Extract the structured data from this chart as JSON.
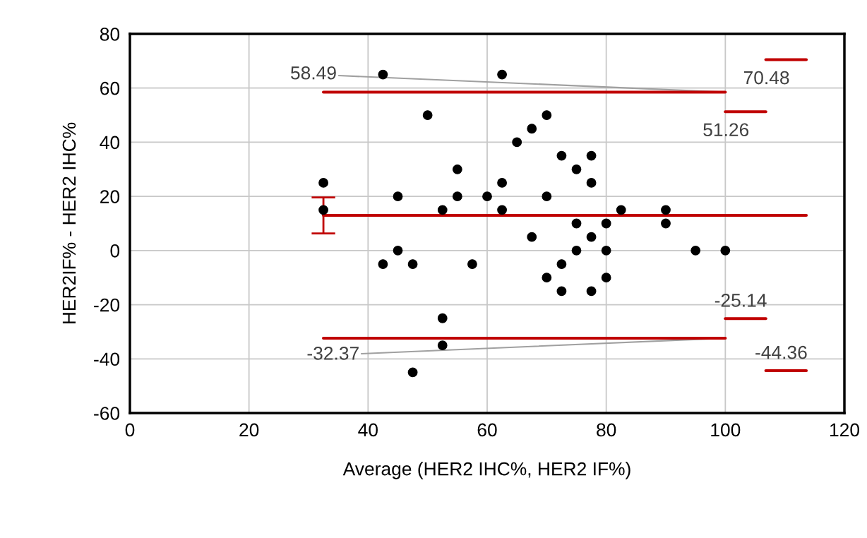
{
  "chart_data": {
    "type": "scatter",
    "xlabel": "Average (HER2 IHC%, HER2 IF%)",
    "ylabel": "HER2IF% - HER2 IHC%",
    "xlim": [
      0,
      120
    ],
    "xticks": [
      0,
      20,
      40,
      60,
      80,
      100,
      120
    ],
    "ylim": [
      -60,
      80
    ],
    "yticks": [
      {
        "value": -60,
        "label": "-60"
      },
      {
        "value": -40,
        "label": "-40"
      },
      {
        "value": -20,
        "label": "-20"
      },
      0,
      20,
      40,
      60,
      80
    ],
    "grid": true,
    "series": [
      {
        "marker": "circle",
        "color": "#000000",
        "x": [
          32.5,
          32.5,
          42.5,
          42.5,
          45,
          45,
          47.5,
          47.5,
          50,
          52.5,
          52.5,
          52.5,
          55,
          55,
          57.5,
          60,
          62.5,
          62.5,
          62.5,
          65,
          67.5,
          67.5,
          70,
          70,
          70,
          72.5,
          72.5,
          72.5,
          75,
          75,
          75,
          77.5,
          77.5,
          77.5,
          77.5,
          80,
          80,
          80,
          82.5,
          90,
          90,
          95,
          100
        ],
        "values": [
          25,
          15,
          65,
          -5,
          20,
          0,
          -5,
          -45,
          50,
          15,
          -25,
          -35,
          30,
          20,
          -5,
          20,
          65,
          25,
          15,
          40,
          45,
          5,
          50,
          20,
          -10,
          35,
          -5,
          -15,
          30,
          10,
          0,
          35,
          25,
          5,
          -15,
          10,
          0,
          -10,
          15,
          15,
          10,
          0,
          0
        ]
      },
      {
        "type": "line",
        "marker": "none",
        "color": "#c00000",
        "x": [
          32.5,
          113.6
        ],
        "values": [
          13,
          13
        ],
        "errors": [
          [
            6.3,
            19.6
          ],
          null
        ]
      },
      {
        "type": "line",
        "marker": "none",
        "color": "#c00000",
        "x": [
          32.5,
          100
        ],
        "values": [
          58.49,
          58.49
        ]
      },
      {
        "type": "line",
        "marker": "none",
        "color": "#c00000",
        "x": [
          32.5,
          100
        ],
        "values": [
          -32.37,
          -32.37
        ]
      },
      {
        "type": "line",
        "marker": "none",
        "color": "#c00000",
        "x": [
          100,
          106.8
        ],
        "values": [
          51.26,
          51.26
        ]
      },
      {
        "type": "line",
        "marker": "none",
        "color": "#c00000",
        "x": [
          106.8,
          113.6
        ],
        "values": [
          70.48,
          70.48
        ]
      },
      {
        "type": "line",
        "marker": "none",
        "color": "#c00000",
        "x": [
          100,
          106.8
        ],
        "values": [
          -25.14,
          -25.14
        ]
      },
      {
        "type": "line",
        "marker": "none",
        "color": "#c00000",
        "x": [
          106.8,
          113.6
        ],
        "values": [
          -44.36,
          -44.36
        ]
      }
    ],
    "annotations": [
      {
        "text": "58.49",
        "x": 100,
        "y": 58.49
      },
      {
        "text": "-32.37",
        "x": 100,
        "y": -32.37
      },
      {
        "text": "51.26",
        "x": 103.4,
        "y": 51.26
      },
      {
        "text": "70.48",
        "x": 110.2,
        "y": 70.48
      },
      {
        "text": "-25.14",
        "x": 103.4,
        "y": -25.14
      },
      {
        "text": "-44.36",
        "x": 110.2,
        "y": -44.36
      }
    ]
  }
}
